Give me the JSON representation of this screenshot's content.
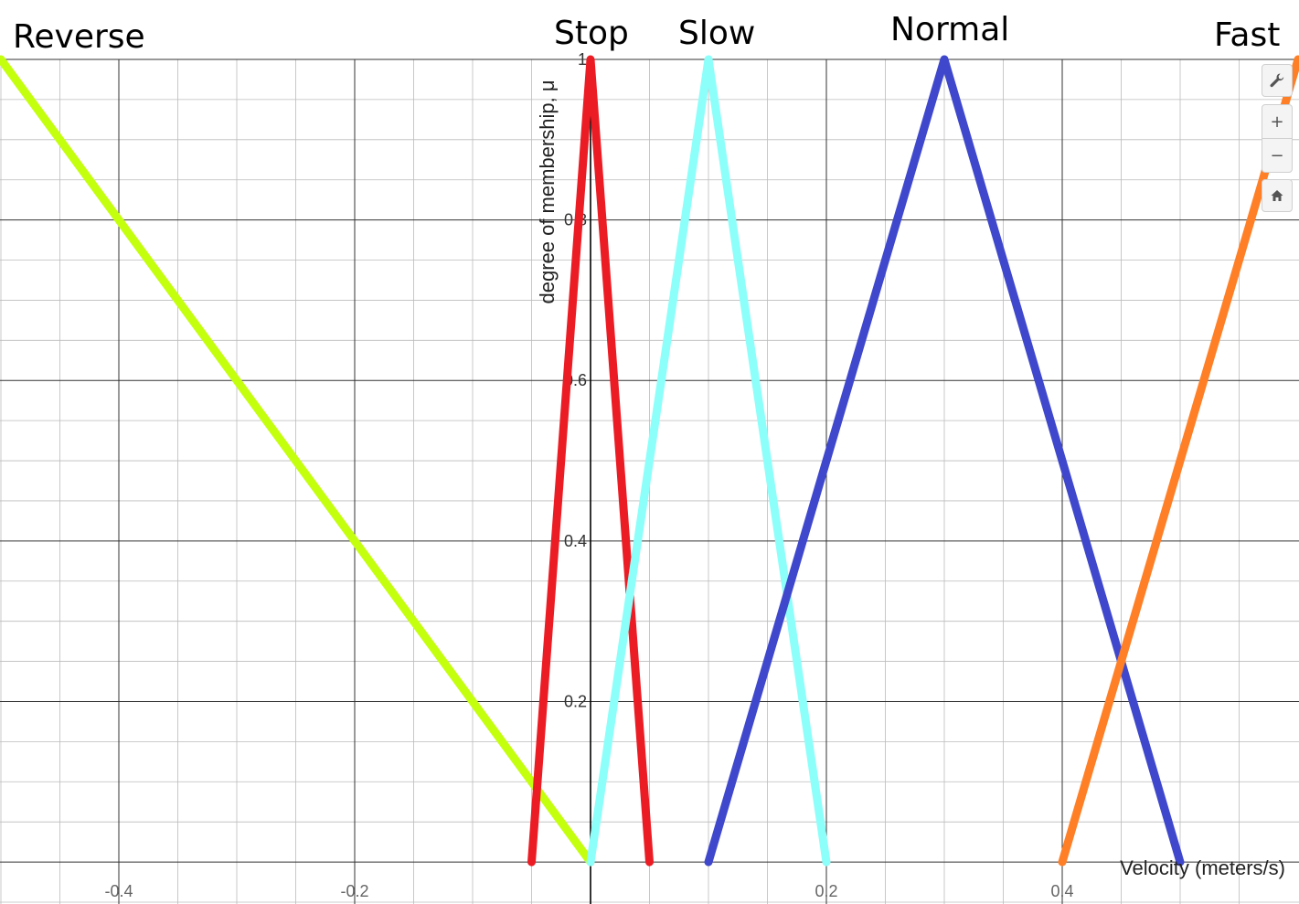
{
  "chart_data": {
    "type": "line",
    "xlabel": "Velocity (meters/s)",
    "ylabel": "degree of membership, μ",
    "xlim": [
      -0.5,
      0.6
    ],
    "ylim": [
      -0.05,
      1.0
    ],
    "x_ticks": [
      -0.4,
      -0.2,
      0.2,
      0.4
    ],
    "x_tick_labels": [
      "-0.4",
      "-0.2",
      "0.2",
      "0.4"
    ],
    "y_ticks": [
      0.2,
      0.4,
      0.6,
      0.8,
      1.0
    ],
    "y_tick_labels": [
      "0.2",
      "0.4",
      "0.6",
      "0.8",
      "1"
    ],
    "grid": true,
    "series": [
      {
        "name": "Reverse",
        "color": "#c4ff0e",
        "x": [
          -0.5,
          0.0
        ],
        "y": [
          1.0,
          0.0
        ]
      },
      {
        "name": "Stop",
        "color": "#ec1c24",
        "x": [
          -0.05,
          0.0,
          0.05
        ],
        "y": [
          0.0,
          1.0,
          0.0
        ]
      },
      {
        "name": "Slow",
        "color": "#8cfffb",
        "x": [
          0.0,
          0.1,
          0.2
        ],
        "y": [
          0.0,
          1.0,
          0.0
        ]
      },
      {
        "name": "Normal",
        "color": "#3f48cc",
        "x": [
          0.1,
          0.3,
          0.5
        ],
        "y": [
          0.0,
          1.0,
          0.0
        ]
      },
      {
        "name": "Fast",
        "color": "#ff7f27",
        "x": [
          0.4,
          0.6
        ],
        "y": [
          0.0,
          1.0
        ]
      }
    ]
  },
  "labels": {
    "reverse": "Reverse",
    "stop": "Stop",
    "slow": "Slow",
    "normal": "Normal",
    "fast": "Fast"
  },
  "toolbar": {
    "wrench_icon": "wrench-icon",
    "zoom_in_label": "+",
    "zoom_out_label": "−",
    "home_icon": "home-icon"
  }
}
